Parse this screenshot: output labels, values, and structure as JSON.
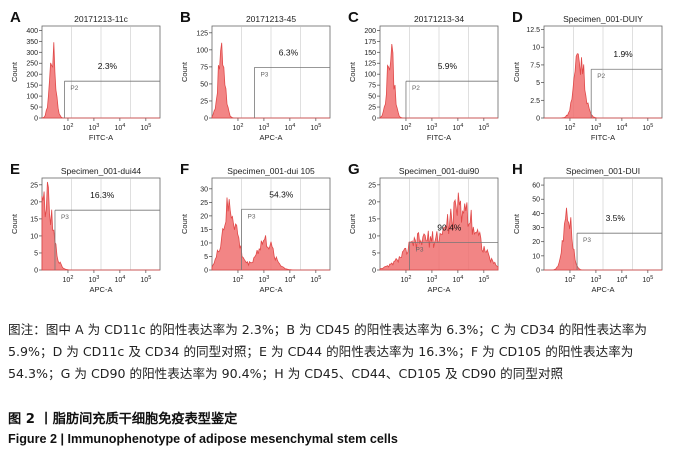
{
  "chart_data": [
    {
      "type": "area",
      "letter": "A",
      "title": "20171213-11c",
      "ylabel": "Count",
      "xlabel": "FITC-A",
      "gate": "P2",
      "percent": "2.3%",
      "yticks": [
        "0",
        "50",
        "100",
        "150",
        "200",
        "250",
        "300",
        "350",
        "400"
      ],
      "ylim": [
        0,
        420
      ],
      "x_scale": "log",
      "xticks": [
        "10^2",
        "10^3",
        "10^4",
        "10^5"
      ],
      "peak": {
        "pos": 0.09,
        "height": 0.92,
        "width": 0.035
      },
      "noise": [],
      "marker": {
        "pos": 0.19,
        "level": 0.4
      }
    },
    {
      "type": "area",
      "letter": "B",
      "title": "20171213-45",
      "ylabel": "Count",
      "xlabel": "APC-A",
      "gate": "P3",
      "percent": "6.3%",
      "yticks": [
        "0",
        "25",
        "50",
        "75",
        "100",
        "125"
      ],
      "ylim": [
        0,
        135
      ],
      "x_scale": "log",
      "xticks": [
        "10^2",
        "10^3",
        "10^4",
        "10^5"
      ],
      "peak": {
        "pos": 0.08,
        "height": 0.96,
        "width": 0.04
      },
      "noise": [],
      "marker": {
        "pos": 0.36,
        "level": 0.55
      }
    },
    {
      "type": "area",
      "letter": "C",
      "title": "20171213-34",
      "ylabel": "Count",
      "xlabel": "FITC-A",
      "gate": "P2",
      "percent": "5.9%",
      "yticks": [
        "0",
        "25",
        "50",
        "75",
        "100",
        "125",
        "150",
        "175",
        "200"
      ],
      "ylim": [
        0,
        210
      ],
      "x_scale": "log",
      "xticks": [
        "10^2",
        "10^3",
        "10^4",
        "10^5"
      ],
      "peak": {
        "pos": 0.09,
        "height": 0.9,
        "width": 0.04
      },
      "noise": [],
      "marker": {
        "pos": 0.22,
        "level": 0.4
      }
    },
    {
      "type": "area",
      "letter": "D",
      "title": "Specimen_001-DUIY",
      "ylabel": "Count",
      "xlabel": "FITC-A",
      "gate": "P2",
      "percent": "1.9%",
      "yticks": [
        "0",
        "2.5",
        "5",
        "7.5",
        "10",
        "12.5"
      ],
      "ylim": [
        0,
        13
      ],
      "x_scale": "log",
      "xticks": [
        "10^2",
        "10^3",
        "10^4",
        "10^5"
      ],
      "peak": {
        "pos": 0.3,
        "height": 0.85,
        "width": 0.06
      },
      "noise": [],
      "marker": {
        "pos": 0.4,
        "level": 0.53
      }
    },
    {
      "type": "area",
      "letter": "E",
      "title": "Specimen_001-dui44",
      "ylabel": "Count",
      "xlabel": "APC-A",
      "gate": "P3",
      "percent": "16.3%",
      "yticks": [
        "0",
        "5",
        "10",
        "15",
        "20",
        "25"
      ],
      "ylim": [
        0,
        27
      ],
      "x_scale": "log",
      "xticks": [
        "10^2",
        "10^3",
        "10^4",
        "10^5"
      ],
      "peak": {
        "pos": 0.03,
        "height": 1.0,
        "width": 0.08
      },
      "noise": [],
      "marker": {
        "pos": 0.11,
        "level": 0.65
      }
    },
    {
      "type": "area",
      "letter": "F",
      "title": "Specimen_001-dui 105",
      "ylabel": "Count",
      "xlabel": "APC-A",
      "gate": "P3",
      "percent": "54.3%",
      "yticks": [
        "0",
        "5",
        "10",
        "15",
        "20",
        "25",
        "30"
      ],
      "ylim": [
        0,
        34
      ],
      "x_scale": "log",
      "xticks": [
        "10^2",
        "10^3",
        "10^4",
        "10^5"
      ],
      "peak": {
        "pos": 0.15,
        "height": 0.85,
        "width": 0.09
      },
      "noise": [
        {
          "pos": 0.45,
          "height": 0.4,
          "width": 0.1
        }
      ],
      "marker": {
        "pos": 0.25,
        "level": 0.66
      }
    },
    {
      "type": "area",
      "letter": "G",
      "title": "Specimen_001-dui90",
      "ylabel": "Count",
      "xlabel": "APC-A",
      "gate": "P3",
      "percent": "90.4%",
      "yticks": [
        "0",
        "5",
        "10",
        "15",
        "20",
        "25"
      ],
      "ylim": [
        0,
        27
      ],
      "x_scale": "log",
      "xticks": [
        "10^2",
        "10^3",
        "10^4",
        "10^5"
      ],
      "peak": {
        "pos": 0.7,
        "height": 0.85,
        "width": 0.18
      },
      "noise": [
        {
          "pos": 0.35,
          "height": 0.4,
          "width": 0.2
        }
      ],
      "marker": {
        "pos": 0.25,
        "level": 0.3
      }
    },
    {
      "type": "area",
      "letter": "H",
      "title": "Specimen_001-DUI",
      "ylabel": "Count",
      "xlabel": "APC-A",
      "gate": "P3",
      "percent": "3.5%",
      "yticks": [
        "0",
        "10",
        "20",
        "30",
        "40",
        "50",
        "60"
      ],
      "ylim": [
        0,
        65
      ],
      "x_scale": "log",
      "xticks": [
        "10^2",
        "10^3",
        "10^4",
        "10^5"
      ],
      "peak": {
        "pos": 0.2,
        "height": 0.9,
        "width": 0.05
      },
      "noise": [],
      "marker": {
        "pos": 0.28,
        "level": 0.4
      }
    }
  ],
  "caption": {
    "text": "图注：图中 A 为 CD11c 的阳性表达率为 2.3%；B 为 CD45 的阳性表达率为 6.3%；C 为 CD34 的阳性表达率为 5.9%；D 为 CD11c 及 CD34 的同型对照；E 为 CD44 的阳性表达率为 16.3%；F 为 CD105 的阳性表达率为 54.3%；G 为 CD90 的阳性表达率为 90.4%；H 为 CD45、CD44、CD105 及 CD90 的同型对照",
    "figure_title_cn": "图 2 丨脂肪间充质干细胞免疫表型鉴定",
    "figure_title_en": "Figure 2 | Immunophenotype of adipose mesenchymal stem cells"
  },
  "colors": {
    "histogram": "#e04848",
    "histogram_fill": "#f07070",
    "gate": "#777777",
    "grid": "#bfbfbf"
  }
}
